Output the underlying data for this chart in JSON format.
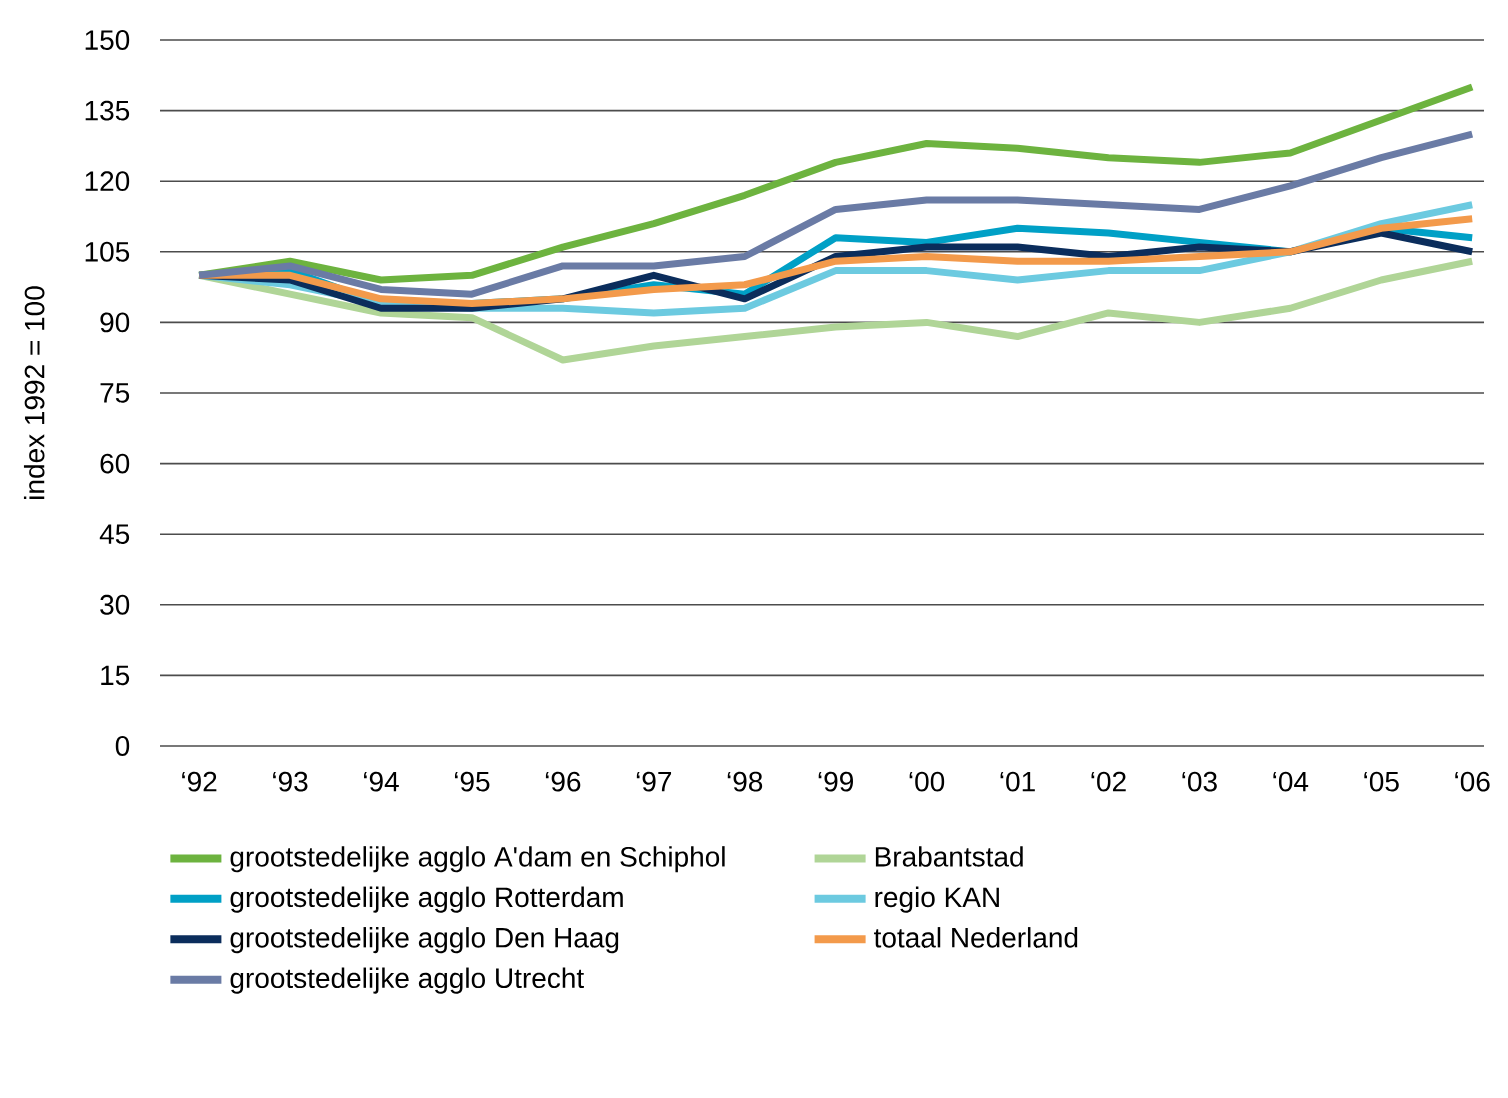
{
  "chart_data": {
    "type": "line",
    "ylabel": "index 1992 = 100",
    "categories": [
      "‘92",
      "‘93",
      "‘94",
      "‘95",
      "‘96",
      "‘97",
      "‘98",
      "‘99",
      "‘00",
      "‘01",
      "‘02",
      "‘03",
      "‘04",
      "‘05",
      "‘06"
    ],
    "ylim": [
      0,
      150
    ],
    "yticks": [
      0,
      15,
      30,
      45,
      60,
      75,
      90,
      105,
      120,
      135,
      150
    ],
    "grid": "y",
    "legend": "bottom",
    "line_style": "solid",
    "marker": "none",
    "series": [
      {
        "name": "grootstedelijke agglo A'dam en Schiphol",
        "color": "#6db33f",
        "values": [
          100,
          103,
          99,
          100,
          106,
          111,
          117,
          124,
          128,
          127,
          125,
          124,
          126,
          133,
          140
        ]
      },
      {
        "name": "grootstedelijke agglo Rotterdam",
        "color": "#00a0c6",
        "values": [
          100,
          101,
          94,
          94,
          95,
          98,
          96,
          108,
          107,
          110,
          109,
          107,
          105,
          110,
          108
        ]
      },
      {
        "name": "grootstedelijke agglo Den Haag",
        "color": "#0b2d5c",
        "values": [
          100,
          99,
          93,
          93,
          95,
          100,
          95,
          104,
          106,
          106,
          104,
          106,
          105,
          109,
          105
        ]
      },
      {
        "name": "grootstedelijke agglo Utrecht",
        "color": "#6a7ba5",
        "values": [
          100,
          102,
          97,
          96,
          102,
          102,
          104,
          114,
          116,
          116,
          115,
          114,
          119,
          125,
          130
        ]
      },
      {
        "name": "Brabantstad",
        "color": "#b0d597",
        "values": [
          100,
          96,
          92,
          91,
          82,
          85,
          87,
          89,
          90,
          87,
          92,
          90,
          93,
          99,
          103
        ]
      },
      {
        "name": "regio KAN",
        "color": "#6ccae0",
        "values": [
          100,
          98,
          94,
          93,
          93,
          92,
          93,
          101,
          101,
          99,
          101,
          101,
          105,
          111,
          115
        ]
      },
      {
        "name": "totaal Nederland",
        "color": "#f39a4b",
        "values": [
          100,
          100,
          95,
          94,
          95,
          97,
          98,
          103,
          104,
          103,
          103,
          104,
          105,
          110,
          112
        ]
      }
    ]
  }
}
